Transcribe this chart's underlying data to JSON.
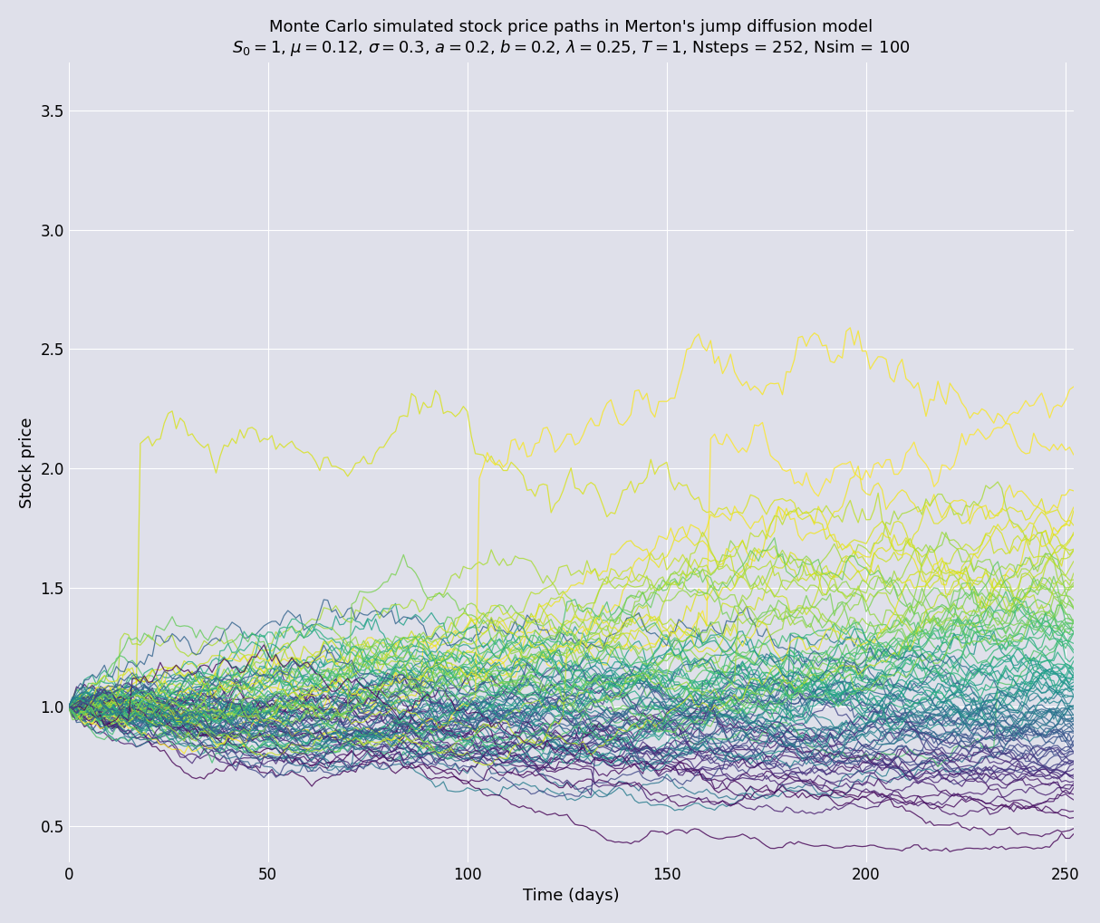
{
  "title_line1": "Monte Carlo simulated stock price paths in Merton's jump diffusion model",
  "title_line2": "$S_0 = 1$, $\\mu = 0.12$, $\\sigma = 0.3$, $a = 0.2$, $b = 0.2$, $\\lambda = 0.25$, $T = 1$, Nsteps = 252, Nsim = 100",
  "S0": 1.0,
  "mu": 0.12,
  "sigma": 0.3,
  "a": 0.2,
  "b": 0.2,
  "lam": 0.25,
  "T": 1,
  "Nsteps": 252,
  "Nsim": 100,
  "xlabel": "Time (days)",
  "ylabel": "Stock price",
  "bg_color": "#dfe0ea",
  "colormap": "viridis",
  "line_alpha": 0.8,
  "line_width": 0.9,
  "seed": 3,
  "figsize": [
    12.14,
    10.19
  ],
  "dpi": 100,
  "title_fontsize": 13,
  "subtitle_fontsize": 13,
  "label_fontsize": 13,
  "tick_fontsize": 12,
  "ylim_bottom": 0.35,
  "ylim_top": 3.7,
  "yticks": [
    0.5,
    1.0,
    1.5,
    2.0,
    2.5,
    3.0,
    3.5
  ],
  "xticks": [
    0,
    50,
    100,
    150,
    200,
    250
  ]
}
